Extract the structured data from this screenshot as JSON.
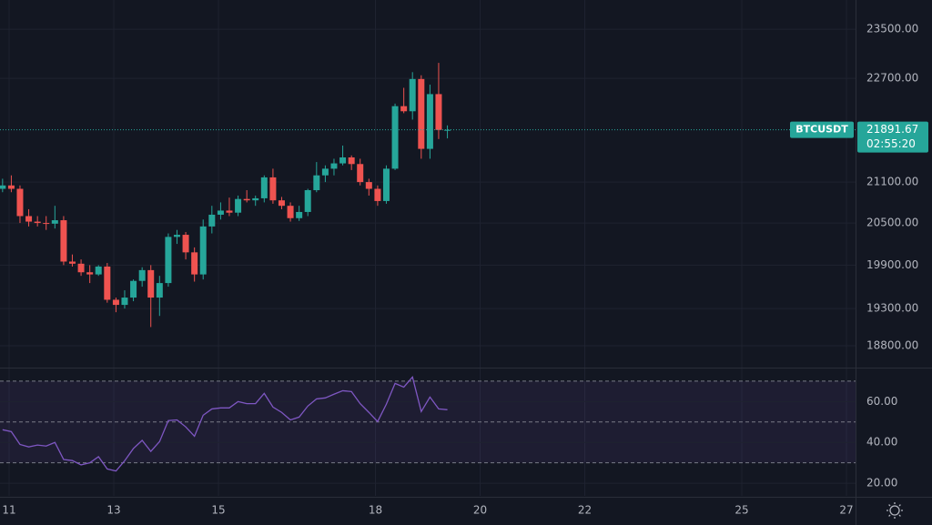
{
  "chart_data": [
    {
      "type": "candlestick",
      "symbol": "BTCUSDT",
      "countdown": "02:55:20",
      "x": [
        10.875,
        11.042,
        11.208,
        11.375,
        11.542,
        11.708,
        11.875,
        12.042,
        12.208,
        12.375,
        12.542,
        12.708,
        12.875,
        13.042,
        13.208,
        13.375,
        13.542,
        13.708,
        13.875,
        14.042,
        14.208,
        14.375,
        14.542,
        14.708,
        14.875,
        15.042,
        15.208,
        15.375,
        15.542,
        15.708,
        15.875,
        16.042,
        16.208,
        16.375,
        16.542,
        16.708,
        16.875,
        17.042,
        17.208,
        17.375,
        17.542,
        17.708,
        17.875,
        18.042,
        18.208,
        18.375,
        18.542,
        18.708,
        18.875,
        19.042,
        19.208,
        19.375
      ],
      "open": [
        21000,
        21050,
        21000,
        20600,
        20520,
        20500,
        20490,
        20540,
        19950,
        19920,
        19800,
        19770,
        19880,
        19420,
        19350,
        19450,
        19680,
        19830,
        19450,
        19650,
        20300,
        20330,
        20080,
        19770,
        20450,
        20620,
        20680,
        20650,
        20850,
        20830,
        20860,
        21170,
        20830,
        20750,
        20570,
        20660,
        20980,
        21200,
        21300,
        21380,
        21470,
        21370,
        21100,
        21000,
        20820,
        21300,
        22260,
        22180,
        22690,
        21600,
        22450,
        21890
      ],
      "high": [
        21150,
        21200,
        21050,
        20700,
        20600,
        20600,
        20750,
        20600,
        20050,
        19980,
        19900,
        19900,
        19930,
        19450,
        19550,
        19700,
        19870,
        19900,
        19750,
        20350,
        20400,
        20370,
        20150,
        20550,
        20750,
        20800,
        20870,
        20900,
        20980,
        20900,
        21200,
        21300,
        20880,
        20800,
        20750,
        21000,
        21400,
        21350,
        21450,
        21650,
        21500,
        21450,
        21150,
        21050,
        21350,
        22300,
        22550,
        22800,
        22750,
        22600,
        22950,
        21960
      ],
      "low": [
        20950,
        20950,
        20500,
        20450,
        20450,
        20400,
        20420,
        19900,
        19880,
        19750,
        19650,
        19750,
        19380,
        19250,
        19300,
        19400,
        19600,
        19050,
        19200,
        19600,
        20200,
        19980,
        19670,
        19700,
        20350,
        20550,
        20600,
        20600,
        20800,
        20750,
        20800,
        20780,
        20700,
        20520,
        20530,
        20600,
        20950,
        21100,
        21200,
        21350,
        21280,
        21050,
        20900,
        20750,
        20780,
        21280,
        22150,
        22050,
        21450,
        21450,
        21750,
        21760
      ],
      "close": [
        21050,
        21000,
        20600,
        20520,
        20500,
        20490,
        20540,
        19950,
        19920,
        19800,
        19770,
        19880,
        19420,
        19350,
        19450,
        19680,
        19830,
        19450,
        19650,
        20300,
        20330,
        20080,
        19770,
        20450,
        20620,
        20680,
        20650,
        20850,
        20830,
        20860,
        21170,
        20830,
        20750,
        20570,
        20660,
        20980,
        21200,
        21300,
        21380,
        21470,
        21370,
        21100,
        21000,
        20820,
        21300,
        22260,
        22180,
        22690,
        21600,
        22450,
        21890,
        21891.67
      ],
      "up_color": "#26a69a",
      "down_color": "#ef5350",
      "log_scale": true,
      "grid": true,
      "xlim": [
        10.826,
        27.174
      ],
      "xticks": [
        11,
        13,
        15,
        18,
        20,
        22,
        25,
        27
      ],
      "ylim": [
        18525,
        23990
      ],
      "yticks": [
        {
          "value": 18800,
          "label": "18800.00"
        },
        {
          "value": 19300,
          "label": "19300.00"
        },
        {
          "value": 19900,
          "label": "19900.00"
        },
        {
          "value": 20500,
          "label": "20500.00"
        },
        {
          "value": 21100,
          "label": "21100.00"
        },
        {
          "value": 22700,
          "label": "22700.00"
        },
        {
          "value": 23500,
          "label": "23500.00"
        }
      ]
    },
    {
      "type": "line",
      "color": "#7e57c2",
      "values": [
        46.2,
        45.3,
        39,
        37.8,
        38.7,
        38.2,
        40,
        31.6,
        31.1,
        29,
        30,
        33,
        27,
        26,
        31,
        37,
        41,
        35.6,
        40.4,
        50.7,
        51,
        47.6,
        43,
        53.3,
        56.4,
        56.9,
        56.9,
        60,
        59,
        59,
        64,
        57.3,
        54.7,
        51,
        52.4,
        57.8,
        61.3,
        61.8,
        63.6,
        65.3,
        64.9,
        59,
        54.7,
        50.2,
        58.7,
        68.9,
        67.1,
        72,
        55.1,
        62.2,
        56.4,
        56
      ],
      "ylim": [
        13.8,
        76.2
      ],
      "yticks": [
        {
          "value": 20,
          "label": "20.00"
        },
        {
          "value": 40,
          "label": "40.00"
        },
        {
          "value": 60,
          "label": "60.00"
        }
      ],
      "levels": [
        30,
        50,
        70
      ]
    }
  ]
}
